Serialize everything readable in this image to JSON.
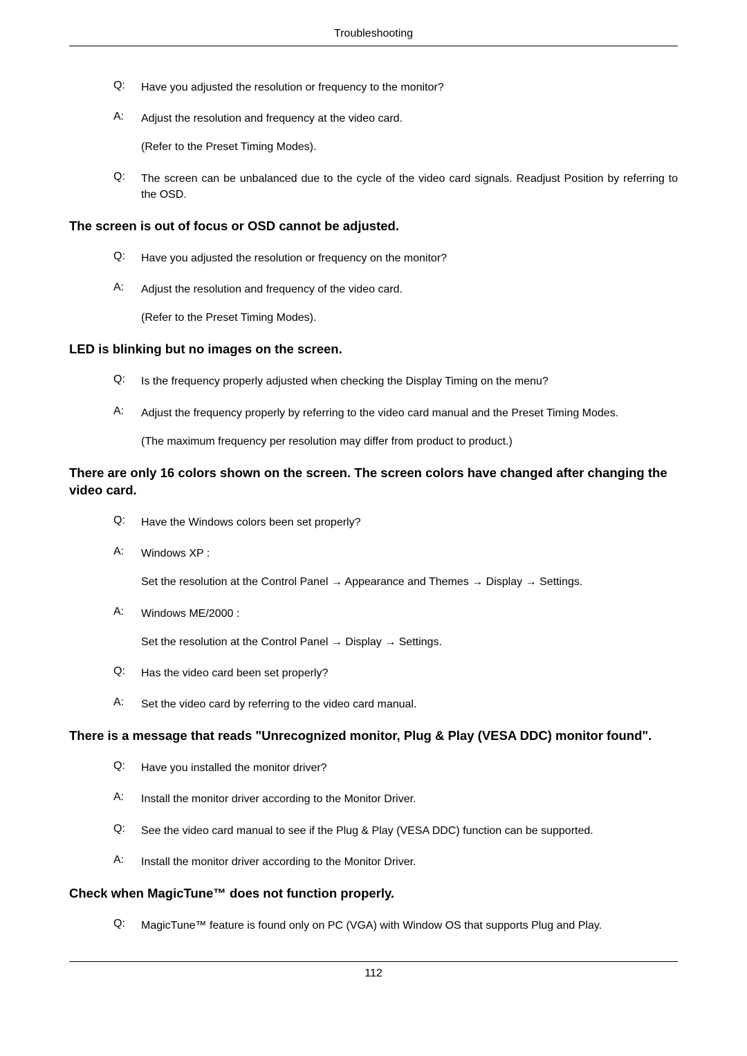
{
  "header": {
    "title": "Troubleshooting"
  },
  "sections": [
    {
      "heading": null,
      "items": [
        {
          "label": "Q:",
          "text": "Have you adjusted the resolution or frequency to the monitor?",
          "sub": null
        },
        {
          "label": "A:",
          "text": "Adjust the resolution and frequency at the video card.",
          "sub": "(Refer to the Preset Timing Modes)."
        },
        {
          "label": "Q:",
          "text": "The screen can be unbalanced due to the cycle of the video card signals. Readjust Position by referring to the OSD.",
          "sub": null
        }
      ]
    },
    {
      "heading": "The screen is out of focus or OSD cannot be adjusted.",
      "items": [
        {
          "label": "Q:",
          "text": "Have you adjusted the resolution or frequency on the monitor?",
          "sub": null
        },
        {
          "label": "A:",
          "text": "Adjust the resolution and frequency of the video card.",
          "sub": "(Refer to the Preset Timing Modes)."
        }
      ]
    },
    {
      "heading": "LED is blinking but no images on the screen.",
      "items": [
        {
          "label": "Q:",
          "text": "Is the frequency properly adjusted when checking the Display Timing on the menu?",
          "sub": null
        },
        {
          "label": "A:",
          "text": "Adjust the frequency properly by referring to the video card manual and the Preset Timing Modes.",
          "sub": "(The maximum frequency per resolution may differ from product to product.)"
        }
      ]
    },
    {
      "heading": "There are only 16 colors shown on the screen. The screen colors have changed after changing the video card.",
      "items": [
        {
          "label": "Q:",
          "text": "Have the Windows colors been set properly?",
          "sub": null
        },
        {
          "label": "A:",
          "text": "Windows XP :",
          "sub": "Set the resolution at the Control Panel → Appearance and Themes → Display → Settings."
        },
        {
          "label": "A:",
          "text": "Windows ME/2000 :",
          "sub": "Set the resolution at the Control Panel → Display → Settings."
        },
        {
          "label": "Q:",
          "text": "Has the video card been set properly?",
          "sub": null
        },
        {
          "label": "A:",
          "text": "Set the video card by referring to the video card manual.",
          "sub": null
        }
      ]
    },
    {
      "heading": "There is a message that reads \"Unrecognized monitor, Plug & Play (VESA DDC) monitor found\".",
      "items": [
        {
          "label": "Q:",
          "text": "Have you installed the monitor driver?",
          "sub": null
        },
        {
          "label": "A:",
          "text": "Install the monitor driver according to the Monitor Driver.",
          "sub": null
        },
        {
          "label": "Q:",
          "text": "See the video card manual to see if the Plug & Play (VESA DDC) function can be supported.",
          "sub": null
        },
        {
          "label": "A:",
          "text": "Install the monitor driver according to the Monitor Driver.",
          "sub": null
        }
      ]
    },
    {
      "heading": "Check when MagicTune™ does not function properly.",
      "items": [
        {
          "label": "Q:",
          "text": "MagicTune™ feature is found only on PC (VGA) with Window OS that supports Plug and Play.",
          "sub": null
        }
      ]
    }
  ],
  "footer": {
    "page": "112"
  }
}
